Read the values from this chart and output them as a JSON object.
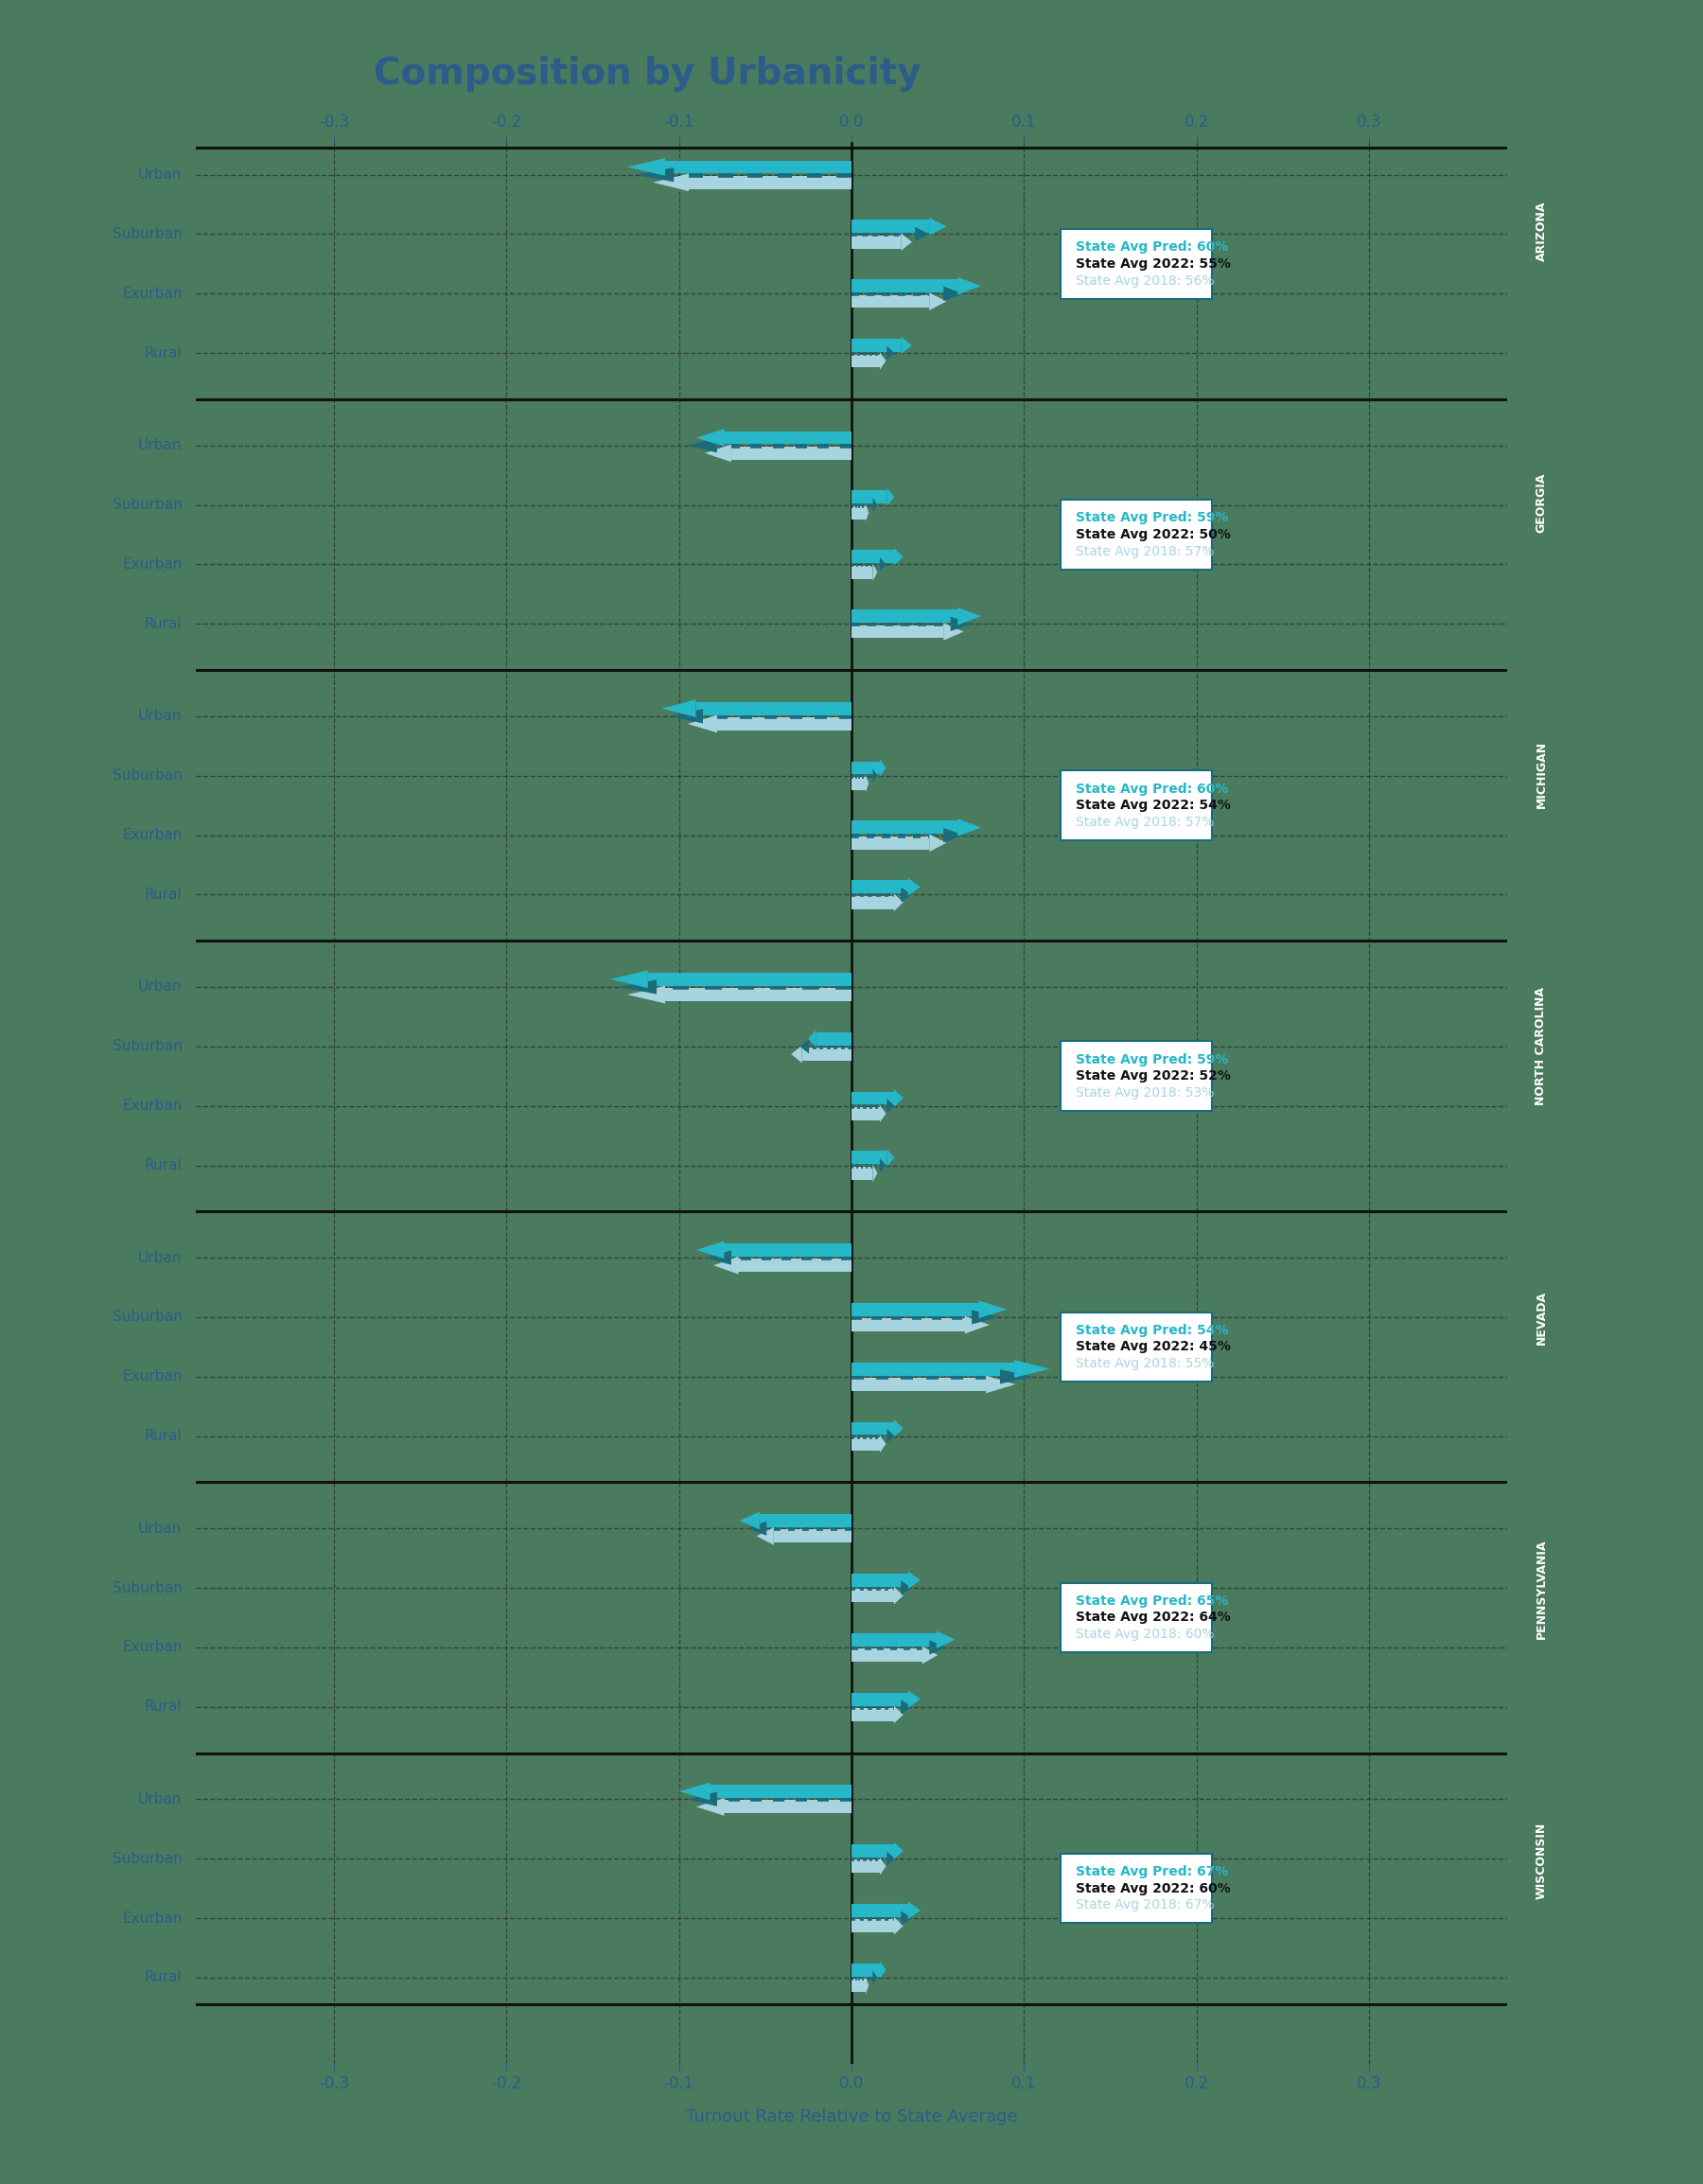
{
  "title": "Composition by Urbanicity",
  "xlabel": "Turnout Rate Relative to State Average",
  "title_color": "#2B5C8A",
  "axis_label_color": "#2B5C8A",
  "background_color": "#4A7B5F",
  "plot_bg_color": "#4A7B5F",
  "states": [
    "ARIZONA",
    "GEORGIA",
    "MICHIGAN",
    "NORTH CAROLINA",
    "NEVADA",
    "PENNSYLVANIA",
    "WISCONSIN"
  ],
  "categories": [
    "Urban",
    "Suburban",
    "Exurban",
    "Rural"
  ],
  "cat_label_color": "#2B5C8A",
  "xlim": [
    -0.38,
    0.38
  ],
  "xticks": [
    -0.3,
    -0.2,
    -0.1,
    0.0,
    0.1,
    0.2,
    0.3
  ],
  "state_avg_pred": [
    60,
    59,
    60,
    59,
    54,
    65,
    67
  ],
  "state_avg_2022": [
    55,
    50,
    54,
    52,
    45,
    64,
    60
  ],
  "state_avg_2018": [
    56,
    57,
    57,
    53,
    55,
    60,
    67
  ],
  "data": {
    "ARIZONA": {
      "pred": [
        -0.13,
        0.055,
        0.075,
        0.035
      ],
      "act2022": [
        -0.125,
        0.045,
        0.065,
        0.025
      ],
      "act2018": [
        -0.115,
        0.035,
        0.055,
        0.02
      ]
    },
    "GEORGIA": {
      "pred": [
        -0.09,
        0.025,
        0.03,
        0.075
      ],
      "act2022": [
        -0.095,
        0.015,
        0.02,
        0.07
      ],
      "act2018": [
        -0.085,
        0.01,
        0.015,
        0.065
      ]
    },
    "MICHIGAN": {
      "pred": [
        -0.11,
        0.02,
        0.075,
        0.04
      ],
      "act2022": [
        -0.105,
        0.015,
        0.065,
        0.035
      ],
      "act2018": [
        -0.095,
        0.01,
        0.055,
        0.03
      ]
    },
    "NORTH CAROLINA": {
      "pred": [
        -0.14,
        -0.025,
        0.03,
        0.025
      ],
      "act2022": [
        -0.135,
        -0.03,
        0.025,
        0.02
      ],
      "act2018": [
        -0.13,
        -0.035,
        0.02,
        0.015
      ]
    },
    "NEVADA": {
      "pred": [
        -0.09,
        0.09,
        0.115,
        0.03
      ],
      "act2022": [
        -0.085,
        0.085,
        0.105,
        0.025
      ],
      "act2018": [
        -0.08,
        0.08,
        0.095,
        0.02
      ]
    },
    "PENNSYLVANIA": {
      "pred": [
        -0.065,
        0.04,
        0.06,
        0.04
      ],
      "act2022": [
        -0.06,
        0.035,
        0.055,
        0.035
      ],
      "act2018": [
        -0.055,
        0.03,
        0.05,
        0.03
      ]
    },
    "WISCONSIN": {
      "pred": [
        -0.1,
        0.03,
        0.04,
        0.02
      ],
      "act2022": [
        -0.095,
        0.025,
        0.035,
        0.015
      ],
      "act2018": [
        -0.09,
        0.02,
        0.03,
        0.01
      ]
    }
  },
  "color_pred": "#26B8C8",
  "color_2022": "#1A6B7B",
  "color_2018": "#A8D4E0",
  "box_edgecolor": "#1A6B7B",
  "state_band_color": "#2B5C8A",
  "grid_color": "#2B2B2B",
  "separator_color": "#111111",
  "border_color": "#111111"
}
